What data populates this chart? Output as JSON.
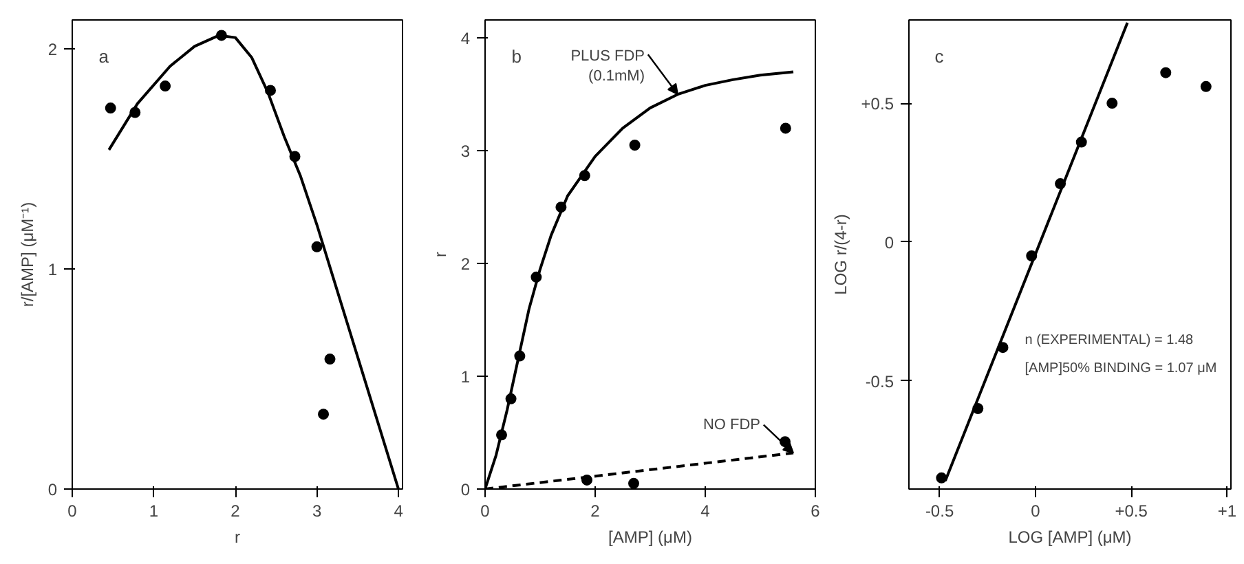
{
  "chart_data": [
    {
      "type": "scatter",
      "title": "a",
      "xlabel": "r",
      "ylabel": "r/[AMP] (μM⁻¹)",
      "xlim": [
        0,
        4.05
      ],
      "ylim": [
        0,
        2.13
      ],
      "xticks": [
        0,
        1,
        2,
        3,
        4
      ],
      "yticks": [
        0,
        1,
        2
      ],
      "grid": false,
      "series": [
        {
          "marker": "circle",
          "color": "#000000",
          "x": [
            0.47,
            0.77,
            1.14,
            1.83,
            2.43,
            2.73,
            3.0,
            3.16,
            3.08
          ],
          "values": [
            1.73,
            1.71,
            1.83,
            2.06,
            1.81,
            1.51,
            1.1,
            0.59,
            0.34
          ]
        },
        {
          "type": "line",
          "color": "#000000",
          "line_style": "solid",
          "x": [
            0.45,
            0.8,
            1.2,
            1.5,
            1.8,
            2.0,
            2.2,
            2.4,
            2.6,
            2.8,
            3.0,
            3.2,
            3.5,
            4.0
          ],
          "values": [
            1.54,
            1.75,
            1.92,
            2.01,
            2.06,
            2.05,
            1.96,
            1.8,
            1.6,
            1.42,
            1.2,
            0.96,
            0.6,
            0
          ]
        }
      ]
    },
    {
      "type": "scatter",
      "title": "b",
      "xlabel": "[AMP] (μM)",
      "ylabel": "r",
      "xlim": [
        0,
        6
      ],
      "ylim": [
        0,
        4.16
      ],
      "xticks": [
        0,
        2,
        4,
        6
      ],
      "yticks": [
        0,
        1,
        2,
        3,
        4
      ],
      "grid": false,
      "series": [
        {
          "marker": "circle",
          "color": "#000000",
          "x": [
            0.3,
            0.47,
            0.63,
            0.93,
            1.38,
            1.81,
            2.72,
            5.46
          ],
          "values": [
            0.48,
            0.8,
            1.18,
            1.88,
            2.5,
            2.78,
            3.05,
            3.2
          ]
        },
        {
          "marker": "circle",
          "color": "#000000",
          "x": [
            1.85,
            2.7,
            5.45
          ],
          "values": [
            0.08,
            0.05,
            0.42
          ]
        },
        {
          "type": "line",
          "name": "PLUS FDP\n(0.1mM)",
          "color": "#000000",
          "line_style": "solid",
          "x": [
            0,
            0.2,
            0.4,
            0.6,
            0.8,
            1.0,
            1.2,
            1.5,
            2.0,
            2.5,
            3.0,
            3.5,
            4.0,
            4.5,
            5.0,
            5.6
          ],
          "values": [
            0,
            0.3,
            0.7,
            1.15,
            1.6,
            1.95,
            2.25,
            2.6,
            2.95,
            3.2,
            3.38,
            3.5,
            3.58,
            3.63,
            3.67,
            3.7
          ]
        },
        {
          "type": "line",
          "name": "NO FDP",
          "color": "#000000",
          "line_style": "dashed",
          "x": [
            0,
            5.6
          ],
          "values": [
            0,
            0.32
          ]
        }
      ]
    },
    {
      "type": "scatter",
      "title": "c",
      "xlabel": "LOG [AMP] (μM)",
      "ylabel": "LOG r/(4-r)",
      "xlim": [
        -0.66,
        1.02
      ],
      "ylim": [
        -0.89,
        0.8
      ],
      "xticks": [
        {
          "value": -0.5,
          "label": "-0.5"
        },
        0,
        {
          "value": 0.5,
          "label": "+0.5"
        },
        {
          "value": 1,
          "label": "+1"
        }
      ],
      "yticks": [
        {
          "value": -0.5,
          "label": "-0.5"
        },
        0,
        {
          "value": 0.5,
          "label": "+0.5"
        }
      ],
      "grid": false,
      "annotations": [
        "n (EXPERIMENTAL) = 1.48",
        "[AMP]50% BINDING = 1.07 μM"
      ],
      "series": [
        {
          "marker": "circle",
          "color": "#000000",
          "x": [
            -0.49,
            -0.3,
            -0.17,
            -0.02,
            0.13,
            0.24,
            0.4,
            0.68,
            0.89
          ],
          "values": [
            -0.85,
            -0.6,
            -0.38,
            -0.05,
            0.21,
            0.36,
            0.5,
            0.61,
            0.56
          ]
        },
        {
          "type": "line",
          "color": "#000000",
          "line_style": "solid",
          "x": [
            -0.47,
            0.48
          ],
          "values": [
            -0.86,
            0.79
          ]
        }
      ]
    }
  ]
}
